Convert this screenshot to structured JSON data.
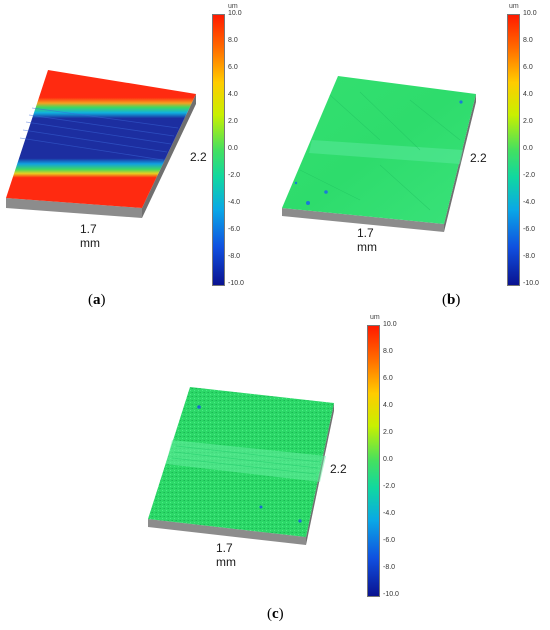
{
  "colors": {
    "red": "#ff2a10",
    "blue": "#1c2ea0",
    "green": "#2ee06a",
    "edge": "#8a8a8a"
  },
  "panels": [
    {
      "caption_open": "(",
      "caption_letter": "a",
      "caption_close": ")",
      "width_label": "1.7 mm",
      "length_label": "2.2",
      "colorbar": {
        "unit": "um",
        "ticks": [
          "10.0",
          "8.0",
          "6.0",
          "4.0",
          "2.0",
          "0.0",
          "-2.0",
          "-4.0",
          "-6.0",
          "-8.0",
          "-10.0"
        ]
      }
    },
    {
      "caption_open": "(",
      "caption_letter": "b",
      "caption_close": ")",
      "width_label": "1.7 mm",
      "length_label": "2.2",
      "colorbar": {
        "unit": "um",
        "ticks": [
          "10.0",
          "8.0",
          "6.0",
          "4.0",
          "2.0",
          "0.0",
          "-2.0",
          "-4.0",
          "-6.0",
          "-8.0",
          "-10.0"
        ]
      }
    },
    {
      "caption_open": "(",
      "caption_letter": "c",
      "caption_close": ")",
      "width_label": "1.7 mm",
      "length_label": "2.2",
      "colorbar": {
        "unit": "um",
        "ticks": [
          "10.0",
          "8.0",
          "6.0",
          "4.0",
          "2.0",
          "0.0",
          "-2.0",
          "-4.0",
          "-6.0",
          "-8.0",
          "-10.0"
        ]
      }
    }
  ]
}
